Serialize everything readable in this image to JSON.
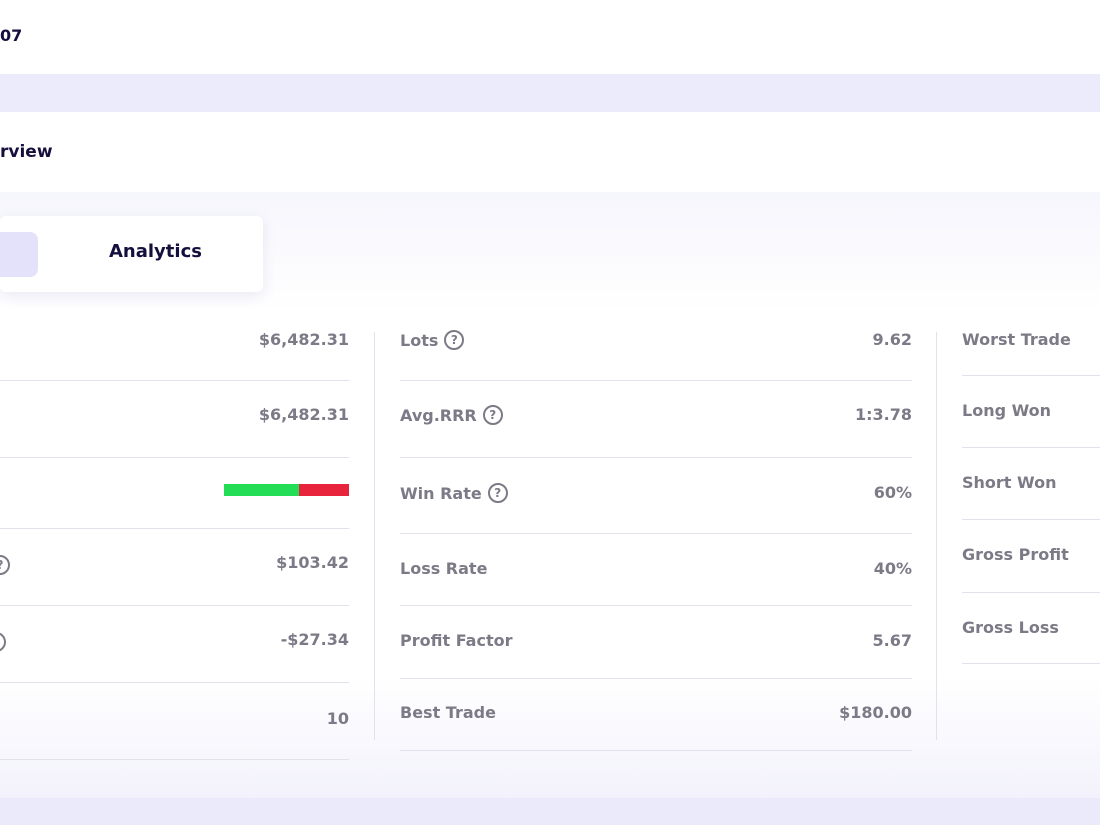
{
  "account": {
    "id": "07"
  },
  "section": {
    "title": "rview"
  },
  "tabs": {
    "active": "s",
    "analytics": "Analytics"
  },
  "left_col": {
    "rows": [
      {
        "value": "$6,482.31"
      },
      {
        "value": "$6,482.31"
      },
      {
        "win_rate_fraction": 0.6
      },
      {
        "value": "$103.42"
      },
      {
        "value": "-$27.34"
      },
      {
        "value": "10"
      }
    ]
  },
  "mid_col": {
    "rows": [
      {
        "label": "Lots",
        "value": "9.62"
      },
      {
        "label": "Avg.RRR",
        "value": "1:3.78"
      },
      {
        "label": "Win Rate",
        "value": "60%"
      },
      {
        "label": "Loss Rate",
        "value": "40%"
      },
      {
        "label": "Profit Factor",
        "value": "5.67"
      },
      {
        "label": "Best Trade",
        "value": "$180.00"
      }
    ]
  },
  "right_col": {
    "rows": [
      {
        "label": "Worst Trade"
      },
      {
        "label": "Long Won"
      },
      {
        "label": "Short Won"
      },
      {
        "label": "Gross Profit"
      },
      {
        "label": "Gross Loss"
      }
    ]
  },
  "help_glyph": "?",
  "colors": {
    "win": "#22dd55",
    "loss": "#e8243c",
    "accent": "#e4e1fb"
  }
}
